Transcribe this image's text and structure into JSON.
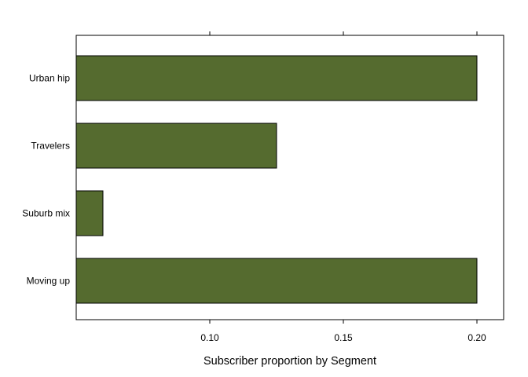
{
  "chart_data": {
    "type": "bar",
    "orientation": "horizontal",
    "categories": [
      "Moving up",
      "Suburb mix",
      "Travelers",
      "Urban hip"
    ],
    "values": [
      0.2,
      0.06,
      0.125,
      0.2
    ],
    "xlabel": "Subscriber proportion by Segment",
    "ylabel": "",
    "xlim": [
      0.05,
      0.21
    ],
    "xticks": [
      0.1,
      0.15,
      0.2
    ],
    "xtick_labels": [
      "0.10",
      "0.15",
      "0.20"
    ],
    "grid": false,
    "bar_color": "#556b2f",
    "bar_edge_color": "#000000"
  }
}
